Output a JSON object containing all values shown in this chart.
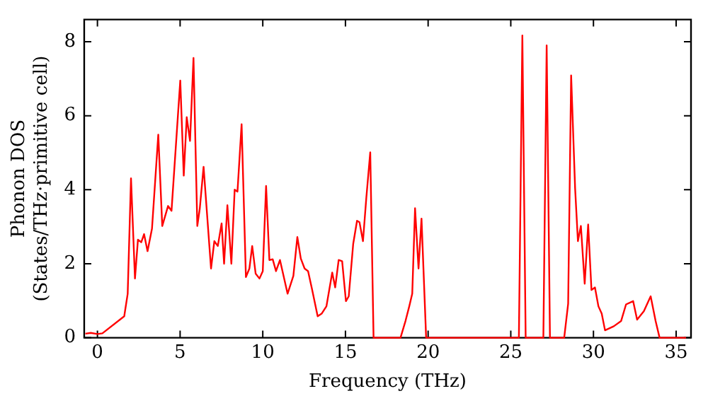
{
  "chart_data": {
    "type": "line",
    "xlabel": "Frequency (THz)",
    "ylabel": "Phonon DOS\n(States/THz·primitive cell)",
    "xlim": [
      -0.8,
      35.9
    ],
    "ylim": [
      0,
      8.6
    ],
    "xticks": [
      0,
      5,
      10,
      15,
      20,
      25,
      30,
      35
    ],
    "yticks": [
      0,
      2,
      4,
      6,
      8
    ],
    "grid": false,
    "legend": false,
    "marker": "none",
    "line_style": "solid",
    "series": [
      {
        "color": "#ff0000",
        "x": [
          -0.73,
          -0.4,
          0,
          0.3,
          1.62,
          1.83,
          2.03,
          2.27,
          2.45,
          2.65,
          2.82,
          3.03,
          3.3,
          3.68,
          3.92,
          4.27,
          4.48,
          5.01,
          5.22,
          5.4,
          5.6,
          5.81,
          6.04,
          6.19,
          6.42,
          6.87,
          7.07,
          7.28,
          7.51,
          7.66,
          7.86,
          8.1,
          8.3,
          8.47,
          8.72,
          8.98,
          9.19,
          9.36,
          9.57,
          9.8,
          10.0,
          10.2,
          10.4,
          10.6,
          10.8,
          11.04,
          11.5,
          11.85,
          12.09,
          12.3,
          12.53,
          12.74,
          12.97,
          13.32,
          13.56,
          13.85,
          14.2,
          14.38,
          14.59,
          14.8,
          15.03,
          15.2,
          15.47,
          15.7,
          15.85,
          16.06,
          16.26,
          16.5,
          16.7,
          18.33,
          18.63,
          18.86,
          19.04,
          19.21,
          19.42,
          19.6,
          19.88,
          25.49,
          25.7,
          25.9,
          26.97,
          27.17,
          27.37,
          28.23,
          28.47,
          28.65,
          28.89,
          29.06,
          29.24,
          29.47,
          29.68,
          29.88,
          30.09,
          30.3,
          30.5,
          30.7,
          31.23,
          31.67,
          31.97,
          32.4,
          32.64,
          33.05,
          33.46,
          33.76,
          34.0,
          35.6
        ],
        "values": [
          0.11,
          0.13,
          0.1,
          0.12,
          0.58,
          1.19,
          4.31,
          1.6,
          2.65,
          2.58,
          2.8,
          2.34,
          2.95,
          5.49,
          3.02,
          3.56,
          3.43,
          6.95,
          4.38,
          5.96,
          5.32,
          7.56,
          3.02,
          3.49,
          4.62,
          1.87,
          2.61,
          2.48,
          3.09,
          2.0,
          3.58,
          2.0,
          4.0,
          3.95,
          5.77,
          1.64,
          1.87,
          2.48,
          1.73,
          1.6,
          1.8,
          4.1,
          2.1,
          2.12,
          1.8,
          2.1,
          1.19,
          1.67,
          2.72,
          2.14,
          1.87,
          1.8,
          1.33,
          0.58,
          0.65,
          0.85,
          1.76,
          1.36,
          2.1,
          2.07,
          0.99,
          1.12,
          2.54,
          3.16,
          3.12,
          2.61,
          3.77,
          5.01,
          0,
          0,
          0.45,
          0.85,
          1.19,
          3.5,
          1.87,
          3.22,
          0,
          0,
          8.17,
          0,
          0,
          7.9,
          0,
          0,
          0.92,
          7.09,
          4.04,
          2.61,
          3.02,
          1.46,
          3.06,
          1.29,
          1.36,
          0.85,
          0.65,
          0.2,
          0.31,
          0.45,
          0.9,
          0.99,
          0.49,
          0.72,
          1.12,
          0.45,
          0,
          0
        ]
      }
    ]
  }
}
